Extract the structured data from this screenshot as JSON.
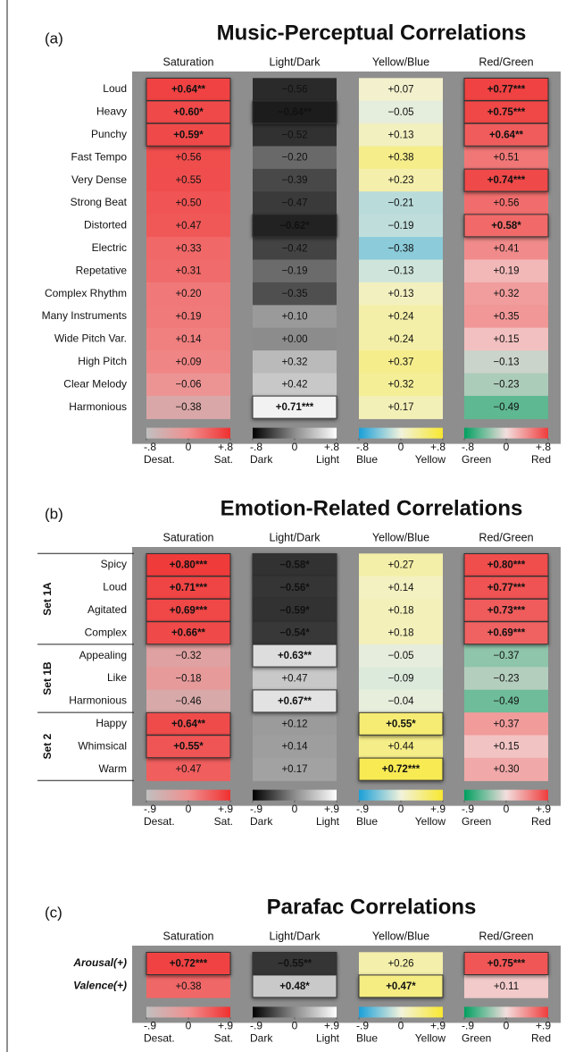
{
  "chart_data": [
    {
      "type": "heatmap",
      "label": "(a)",
      "title": "Music-Perceptual Correlations",
      "categories": [
        "Loud",
        "Heavy",
        "Punchy",
        "Fast Tempo",
        "Very Dense",
        "Strong Beat",
        "Distorted",
        "Electric",
        "Repetative",
        "Complex Rhythm",
        "Many Instruments",
        "Wide Pitch Var.",
        "High Pitch",
        "Clear Melody",
        "Harmonious"
      ],
      "clim": [
        -0.8,
        0.8
      ],
      "cticks": [
        {
          "value": -0.8,
          "label": "-.8"
        },
        0,
        {
          "value": 0.8,
          "label": "+.8"
        }
      ],
      "series": [
        {
          "name": "Saturation",
          "low_label": "Desat.",
          "high_label": "Sat.",
          "colors": [
            "#c0c0c0",
            "#f09090",
            "#f03030"
          ],
          "values": [
            0.64,
            0.6,
            0.59,
            0.56,
            0.55,
            0.5,
            0.47,
            0.33,
            0.31,
            0.2,
            0.19,
            0.14,
            0.09,
            -0.06,
            -0.38
          ],
          "value_labels": [
            "+0.64**",
            "+0.60*",
            "+0.59*",
            "+0.56",
            "+0.55",
            "+0.50",
            "+0.47",
            "+0.33",
            "+0.31",
            "+0.20",
            "+0.19",
            "+0.14",
            "+0.09",
            "−0.06",
            "−0.38"
          ]
        },
        {
          "name": "Light/Dark",
          "low_label": "Dark",
          "high_label": "Light",
          "colors": [
            "#000000",
            "#8c8c8c",
            "#ffffff"
          ],
          "values": [
            -0.56,
            -0.64,
            -0.52,
            -0.2,
            -0.39,
            -0.47,
            -0.62,
            -0.42,
            -0.19,
            -0.35,
            0.1,
            0.0,
            0.32,
            0.42,
            0.71
          ],
          "value_labels": [
            "−0.56",
            "−0.64**",
            "−0.52",
            "−0.20",
            "−0.39",
            "−0.47",
            "−0.62*",
            "−0.42",
            "−0.19",
            "−0.35",
            "+0.10",
            "+0.00",
            "+0.32",
            "+0.42",
            "+0.71***"
          ]
        },
        {
          "name": "Yellow/Blue",
          "low_label": "Blue",
          "high_label": "Yellow",
          "colors": [
            "#1a9fd8",
            "#f2f2dc",
            "#f8e830"
          ],
          "values": [
            0.07,
            -0.05,
            0.13,
            0.38,
            0.23,
            -0.21,
            -0.19,
            -0.38,
            -0.13,
            0.13,
            0.24,
            0.24,
            0.37,
            0.32,
            0.17
          ],
          "value_labels": [
            "+0.07",
            "−0.05",
            "+0.13",
            "+0.38",
            "+0.23",
            "−0.21",
            "−0.19",
            "−0.38",
            "−0.13",
            "+0.13",
            "+0.24",
            "+0.24",
            "+0.37",
            "+0.32",
            "+0.17"
          ]
        },
        {
          "name": "Red/Green",
          "low_label": "Green",
          "high_label": "Red",
          "colors": [
            "#00a060",
            "#f2dede",
            "#f03c3c"
          ],
          "values": [
            0.77,
            0.75,
            0.64,
            0.51,
            0.74,
            0.56,
            0.58,
            0.41,
            0.19,
            0.32,
            0.35,
            0.15,
            -0.13,
            -0.23,
            -0.49
          ],
          "value_labels": [
            "+0.77***",
            "+0.75***",
            "+0.64**",
            "+0.51",
            "+0.74***",
            "+0.56",
            "+0.58*",
            "+0.41",
            "+0.19",
            "+0.32",
            "+0.35",
            "+0.15",
            "−0.13",
            "−0.23",
            "−0.49"
          ]
        }
      ]
    },
    {
      "type": "heatmap",
      "label": "(b)",
      "title": "Emotion-Related Correlations",
      "groups": [
        {
          "label": "Set 1A",
          "categories": [
            "Spicy",
            "Loud",
            "Agitated",
            "Complex"
          ]
        },
        {
          "label": "Set 1B",
          "categories": [
            "Appealing",
            "Like",
            "Harmonious"
          ]
        },
        {
          "label": "Set 2",
          "categories": [
            "Happy",
            "Whimsical",
            "Warm"
          ]
        }
      ],
      "clim": [
        -0.9,
        0.9
      ],
      "cticks": [
        {
          "value": -0.9,
          "label": "-.9"
        },
        0,
        {
          "value": 0.9,
          "label": "+.9"
        }
      ],
      "series": [
        {
          "name": "Saturation",
          "low_label": "Desat.",
          "high_label": "Sat.",
          "colors": [
            "#c0c0c0",
            "#f09090",
            "#f03030"
          ],
          "values": [
            0.8,
            0.71,
            0.69,
            0.66,
            -0.32,
            -0.18,
            -0.46,
            0.64,
            0.55,
            0.47
          ],
          "value_labels": [
            "+0.80***",
            "+0.71***",
            "+0.69***",
            "+0.66**",
            "−0.32",
            "−0.18",
            "−0.46",
            "+0.64**",
            "+0.55*",
            "+0.47"
          ]
        },
        {
          "name": "Light/Dark",
          "low_label": "Dark",
          "high_label": "Light",
          "colors": [
            "#000000",
            "#8c8c8c",
            "#ffffff"
          ],
          "values": [
            -0.58,
            -0.56,
            -0.59,
            -0.54,
            0.63,
            0.47,
            0.67,
            0.12,
            0.14,
            0.17
          ],
          "value_labels": [
            "−0.58*",
            "−0.56*",
            "−0.59*",
            "−0.54*",
            "+0.63**",
            "+0.47",
            "+0.67**",
            "+0.12",
            "+0.14",
            "+0.17"
          ]
        },
        {
          "name": "Yellow/Blue",
          "low_label": "Blue",
          "high_label": "Yellow",
          "colors": [
            "#1a9fd8",
            "#f2f2dc",
            "#f8e830"
          ],
          "values": [
            0.27,
            0.14,
            0.18,
            0.18,
            -0.05,
            -0.09,
            -0.04,
            0.55,
            0.44,
            0.72
          ],
          "value_labels": [
            "+0.27",
            "+0.14",
            "+0.18",
            "+0.18",
            "−0.05",
            "−0.09",
            "−0.04",
            "+0.55*",
            "+0.44",
            "+0.72***"
          ]
        },
        {
          "name": "Red/Green",
          "low_label": "Green",
          "high_label": "Red",
          "colors": [
            "#00a060",
            "#f2dede",
            "#f03c3c"
          ],
          "values": [
            0.8,
            0.77,
            0.73,
            0.69,
            -0.37,
            -0.23,
            -0.49,
            0.37,
            0.15,
            0.3
          ],
          "value_labels": [
            "+0.80***",
            "+0.77***",
            "+0.73***",
            "+0.69***",
            "−0.37",
            "−0.23",
            "−0.49",
            "+0.37",
            "+0.15",
            "+0.30"
          ]
        }
      ]
    },
    {
      "type": "heatmap",
      "label": "(c)",
      "title": "Parafac Correlations",
      "categories": [
        "Arousal(+)",
        "Valence(+)"
      ],
      "clim": [
        -0.9,
        0.9
      ],
      "cticks": [
        {
          "value": -0.9,
          "label": "-.9"
        },
        0,
        {
          "value": 0.9,
          "label": "+.9"
        }
      ],
      "series": [
        {
          "name": "Saturation",
          "low_label": "Desat.",
          "high_label": "Sat.",
          "colors": [
            "#c0c0c0",
            "#f09090",
            "#f03030"
          ],
          "values": [
            0.72,
            0.38
          ],
          "value_labels": [
            "+0.72***",
            "+0.38"
          ]
        },
        {
          "name": "Light/Dark",
          "low_label": "Dark",
          "high_label": "Light",
          "colors": [
            "#000000",
            "#8c8c8c",
            "#ffffff"
          ],
          "values": [
            -0.55,
            0.48
          ],
          "value_labels": [
            "−0.55**",
            "+0.48*"
          ]
        },
        {
          "name": "Yellow/Blue",
          "low_label": "Blue",
          "high_label": "Yellow",
          "colors": [
            "#1a9fd8",
            "#f2f2dc",
            "#f8e830"
          ],
          "values": [
            0.26,
            0.47
          ],
          "value_labels": [
            "+0.26",
            "+0.47*"
          ]
        },
        {
          "name": "Red/Green",
          "low_label": "Green",
          "high_label": "Red",
          "colors": [
            "#00a060",
            "#f2dede",
            "#f03c3c"
          ],
          "values": [
            0.75,
            0.11
          ],
          "value_labels": [
            "+0.75***",
            "+0.11"
          ]
        }
      ]
    }
  ]
}
